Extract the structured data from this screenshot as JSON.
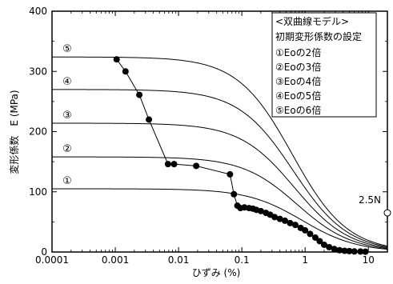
{
  "chart_data": {
    "type": "scatter",
    "xlabel": "ひずみ (%)",
    "ylabel": "変形係数　E (MPa)",
    "x_scale": "log",
    "xlim": [
      0.0001,
      20
    ],
    "ylim": [
      0,
      400
    ],
    "x_ticks": [
      0.0001,
      0.001,
      0.01,
      0.1,
      1,
      10
    ],
    "x_tick_labels": [
      "0.0001",
      "0.001",
      "0.01",
      "0.1",
      "1",
      "10"
    ],
    "y_ticks": [
      0,
      100,
      200,
      300,
      400
    ],
    "y_tick_labels": [
      "0",
      "100",
      "200",
      "300",
      "400"
    ],
    "grid": false,
    "legend": {
      "placement": "top-right",
      "title": "<双曲線モデル>",
      "subtitle": "初期変形係数の設定",
      "items": [
        "①Eoの2倍",
        "②Eoの3倍",
        "③Eoの4倍",
        "④Eoの5倍",
        "⑤Eoの6倍"
      ]
    },
    "model_curves": [
      {
        "label": "①",
        "E0": 105,
        "ref_strain": 0.9
      },
      {
        "label": "②",
        "E0": 158,
        "ref_strain": 0.75
      },
      {
        "label": "③",
        "E0": 214,
        "ref_strain": 0.68
      },
      {
        "label": "④",
        "E0": 270,
        "ref_strain": 0.65
      },
      {
        "label": "⑤",
        "E0": 324,
        "ref_strain": 0.63
      }
    ],
    "measured": {
      "x": [
        0.00105,
        0.00145,
        0.0024,
        0.0034,
        0.0068,
        0.0085,
        0.019,
        0.065,
        0.075,
        0.085,
        0.095,
        0.11,
        0.13,
        0.15,
        0.17,
        0.2,
        0.24,
        0.28,
        0.33,
        0.4,
        0.48,
        0.58,
        0.7,
        0.85,
        1.0,
        1.2,
        1.45,
        1.7,
        2.0,
        2.4,
        2.9,
        3.5,
        4.2,
        5.0,
        6.0,
        7.5,
        9.0
      ],
      "y": [
        320,
        300,
        261,
        220,
        146,
        146,
        143,
        129,
        96,
        77,
        73,
        74,
        73,
        72,
        70,
        68,
        65,
        62,
        58,
        55,
        52,
        48,
        45,
        40,
        36,
        30,
        24,
        18,
        12,
        8,
        5,
        3,
        2,
        1.5,
        1,
        0.8,
        0.5
      ]
    },
    "side_marker": {
      "label": "2.5N",
      "y": 65
    }
  }
}
